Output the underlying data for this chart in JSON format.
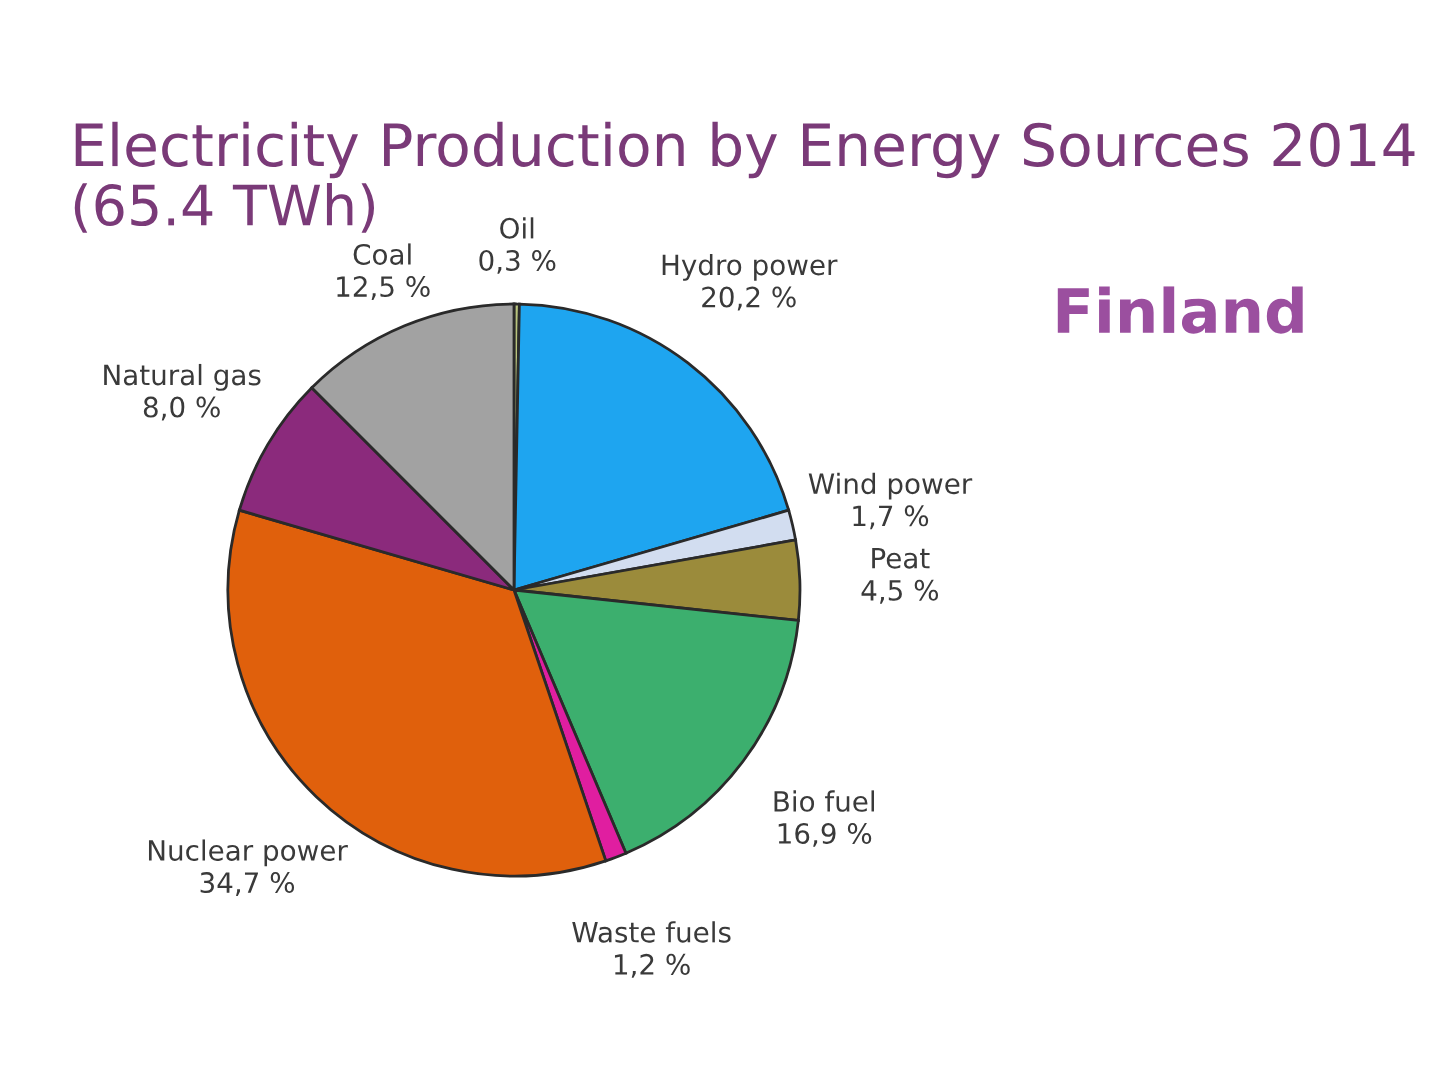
{
  "chart_data": {
    "type": "pie",
    "title": "Electricity Production by Energy Sources 2014",
    "subtitle": "(65.4 TWh)",
    "annotations": [
      "Finland"
    ],
    "categories": [
      "Oil",
      "Hydro power",
      "Wind power",
      "Peat",
      "Bio fuel",
      "Waste fuels",
      "Nuclear power",
      "Natural gas",
      "Coal"
    ],
    "values": [
      0.3,
      20.2,
      1.7,
      4.5,
      16.9,
      1.2,
      34.7,
      8.0,
      12.5
    ],
    "value_labels": [
      "0,3 %",
      "20,2 %",
      "1,7 %",
      "4,5 %",
      "16,9 %",
      "1,2 %",
      "34,7 %",
      "8,0 %",
      "12,5 %"
    ],
    "colors": [
      "#b9c47e",
      "#1ea5f0",
      "#d2ddf0",
      "#9b8b3b",
      "#3caf6e",
      "#e01ea0",
      "#e0600c",
      "#8b2a7c",
      "#a2a2a2"
    ]
  }
}
